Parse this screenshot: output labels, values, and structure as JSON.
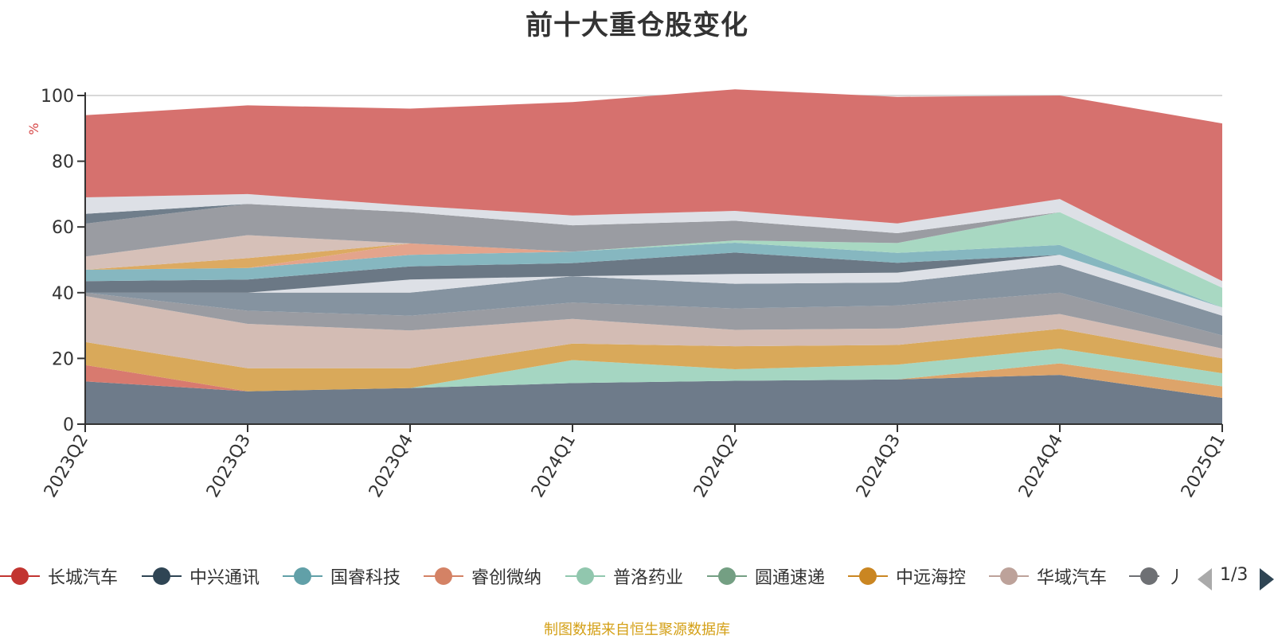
{
  "chart_data": {
    "type": "area",
    "title": "前十大重仓股变化",
    "ylabel": "%",
    "ylim": [
      0,
      100
    ],
    "yticks": [
      0,
      20,
      40,
      60,
      80,
      100
    ],
    "grid": true,
    "legend_position": "bottom",
    "categories": [
      "2023Q2",
      "2023Q3",
      "2023Q4",
      "2024Q1",
      "2024Q2",
      "2024Q3",
      "2024Q4",
      "2025Q1"
    ],
    "series": [
      {
        "name": "",
        "color": "#6e7b8a",
        "values": [
          13.0,
          10.0,
          11.0,
          12.5,
          13.2,
          13.6,
          15.0,
          8.0
        ]
      },
      {
        "name": "",
        "color": "#d87a6f",
        "values": [
          5.0,
          0,
          0,
          0,
          0,
          0,
          0,
          0
        ]
      },
      {
        "name": "",
        "color": "#dda46a",
        "values": [
          0,
          0,
          0,
          0,
          0,
          0,
          3.5,
          3.5
        ]
      },
      {
        "name": "",
        "color": "#a5d6c2",
        "values": [
          0,
          0,
          0,
          7.0,
          3.5,
          4.5,
          4.5,
          4.0
        ]
      },
      {
        "name": "",
        "color": "#d9a95a",
        "values": [
          7.0,
          7.0,
          6.0,
          5.0,
          7.0,
          6.0,
          6.0,
          4.5
        ]
      },
      {
        "name": "",
        "color": "#d3bcb4",
        "values": [
          14.0,
          13.5,
          11.5,
          7.5,
          5.0,
          5.0,
          4.5,
          3.0
        ]
      },
      {
        "name": "",
        "color": "#9a9ca2",
        "values": [
          1.0,
          4.0,
          4.5,
          5.0,
          6.5,
          7.0,
          6.5,
          4.0
        ]
      },
      {
        "name": "",
        "color": "#8593a0",
        "values": [
          0,
          5.5,
          7.0,
          8.0,
          7.5,
          7.0,
          8.5,
          6.0
        ]
      },
      {
        "name": "",
        "color": "#dde0e6",
        "values": [
          0,
          0,
          4.0,
          0,
          3.0,
          3.0,
          3.0,
          2.5
        ]
      },
      {
        "name": "",
        "color": "#6b7885",
        "values": [
          3.5,
          4.0,
          4.0,
          4.0,
          6.5,
          3.0,
          0,
          0
        ]
      },
      {
        "name": "",
        "color": "#86b7c0",
        "values": [
          3.5,
          3.5,
          3.5,
          3.5,
          3.0,
          3.0,
          3.0,
          0
        ]
      },
      {
        "name": "",
        "color": "#e3a48c",
        "values": [
          0,
          0,
          3.5,
          0,
          0,
          0,
          0,
          0
        ]
      },
      {
        "name": "",
        "color": "#dcaa62",
        "values": [
          0,
          3.0,
          0,
          0,
          0,
          0,
          0,
          0
        ]
      },
      {
        "name": "",
        "color": "#d6c0b8",
        "values": [
          4.0,
          7.0,
          0,
          0,
          0,
          0,
          0,
          0
        ]
      },
      {
        "name": "",
        "color": "#a8d8c2",
        "values": [
          0,
          0,
          0,
          0,
          0.7,
          3.0,
          10.0,
          6.0
        ]
      },
      {
        "name": "",
        "color": "#9a9ca2",
        "values": [
          10.0,
          9.5,
          9.5,
          8.0,
          6.0,
          3.0,
          0,
          0
        ]
      },
      {
        "name": "",
        "color": "#707e8b",
        "values": [
          3.0,
          0,
          0,
          0,
          0,
          0,
          0,
          0
        ]
      },
      {
        "name": "",
        "color": "#d67a75",
        "values": [
          0,
          0,
          0,
          0,
          0,
          0,
          0,
          0
        ]
      },
      {
        "name": "",
        "color": "#dde0e6",
        "values": [
          5.0,
          3.0,
          2.0,
          3.0,
          3.0,
          3.0,
          4.0,
          2.0
        ]
      },
      {
        "name": "",
        "color": "#d6716e",
        "values": [
          25.0,
          27.0,
          29.5,
          34.5,
          37.0,
          38.5,
          31.5,
          48.0
        ]
      }
    ],
    "legend": [
      {
        "name": "长城汽车",
        "color": "#c23531"
      },
      {
        "name": "中兴通讯",
        "color": "#2f4554"
      },
      {
        "name": "国睿科技",
        "color": "#61a0a8"
      },
      {
        "name": "睿创微纳",
        "color": "#d48265"
      },
      {
        "name": "普洛药业",
        "color": "#91c7ae"
      },
      {
        "name": "圆通速递",
        "color": "#749f83"
      },
      {
        "name": "中远海控",
        "color": "#ca8622"
      },
      {
        "name": "华域汽车",
        "color": "#bda29a"
      },
      {
        "name": "丿",
        "color": "#6e7074"
      }
    ]
  },
  "legend_pager": {
    "text": "1/3"
  },
  "source_note": "制图数据来自恒生聚源数据库"
}
